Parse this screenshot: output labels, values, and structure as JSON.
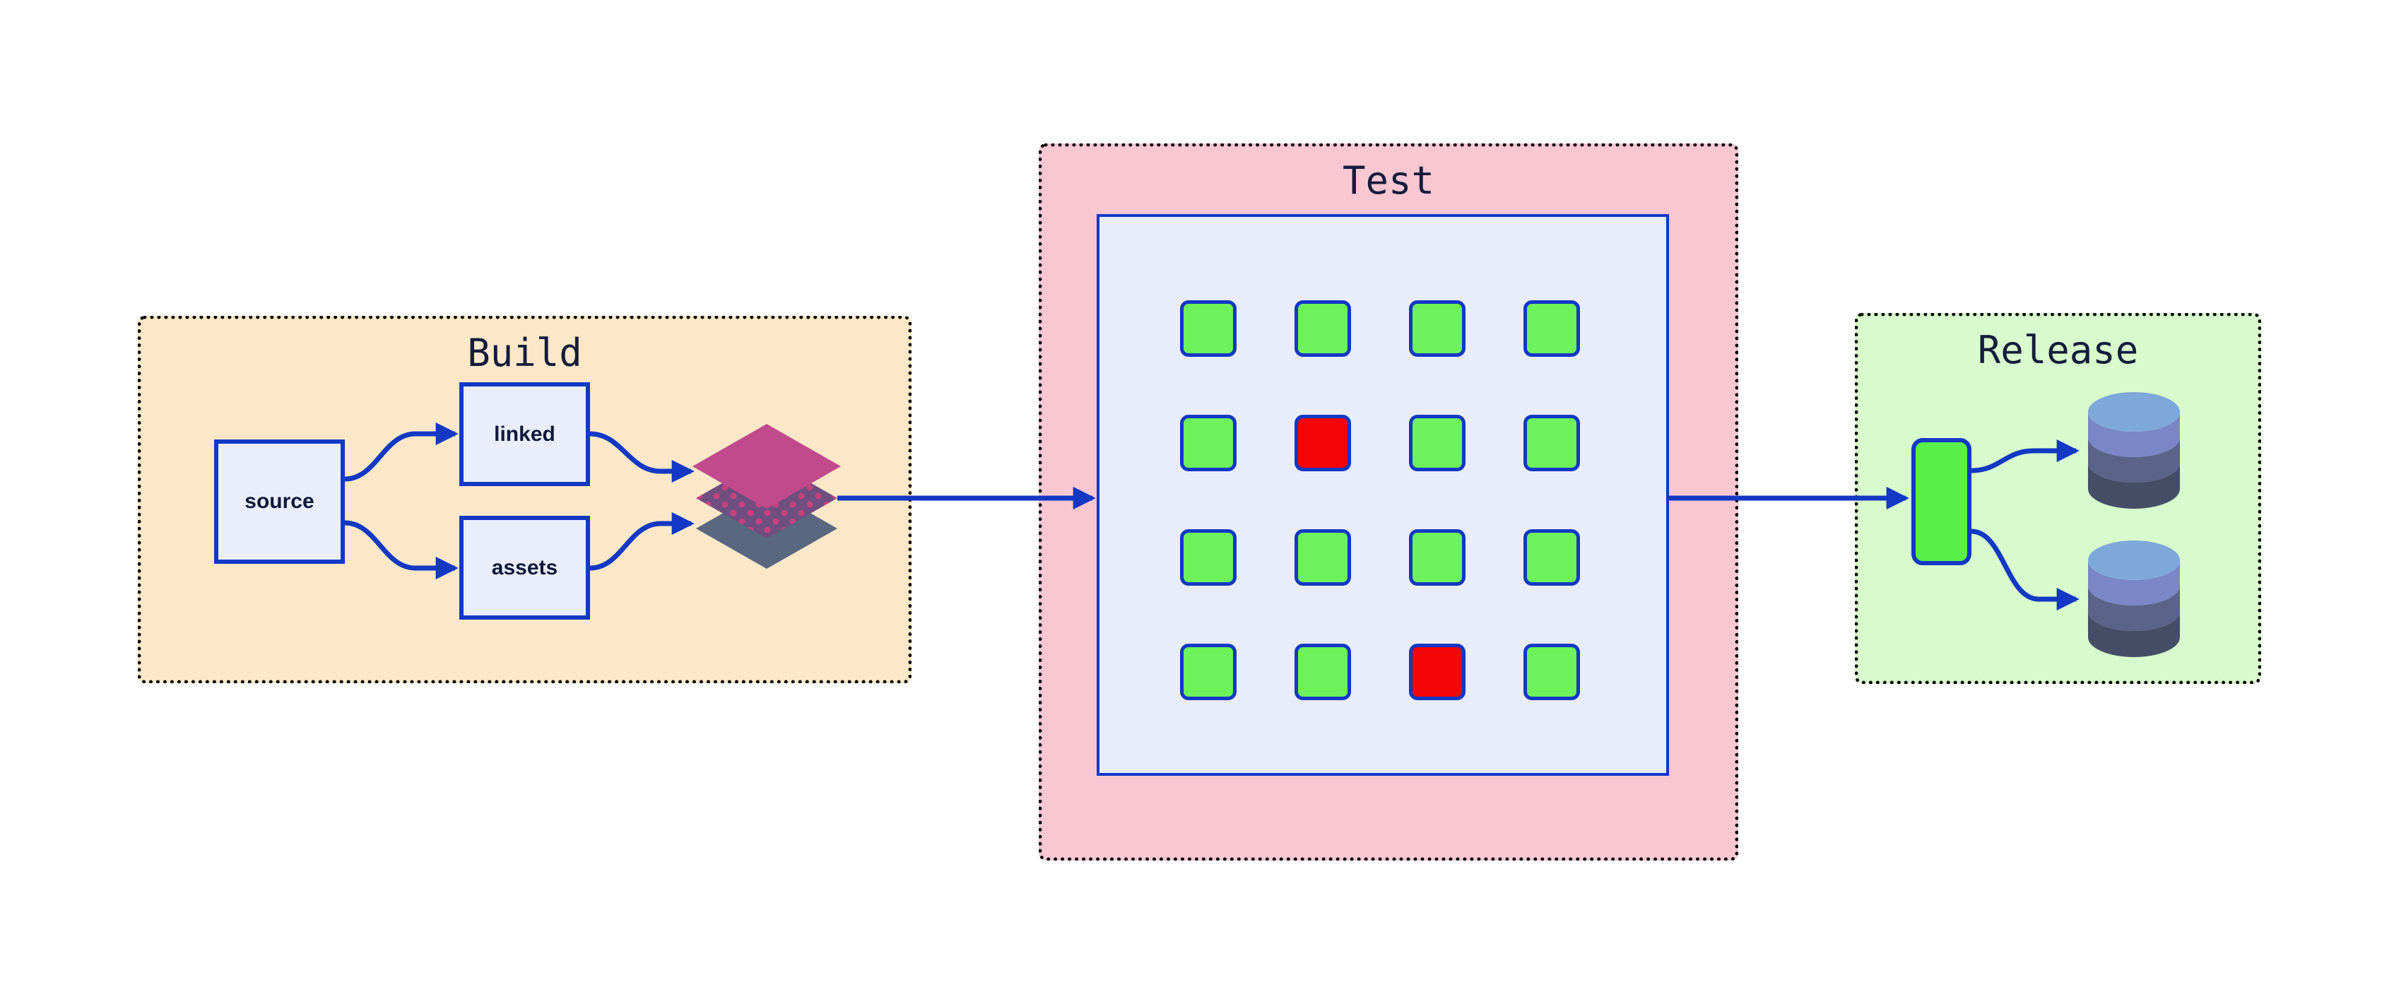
{
  "sections": {
    "build": {
      "title": "Build",
      "background": "#FCE8C8",
      "nodes": [
        {
          "label": "source"
        },
        {
          "label": "linked"
        },
        {
          "label": "assets"
        }
      ],
      "icon": "layers-icon"
    },
    "test": {
      "title": "Test",
      "background": "#F9C7D2",
      "grid": {
        "rows": 4,
        "cols": 4,
        "statuses": [
          [
            "pass",
            "pass",
            "pass",
            "pass"
          ],
          [
            "pass",
            "fail",
            "pass",
            "pass"
          ],
          [
            "pass",
            "pass",
            "pass",
            "pass"
          ],
          [
            "pass",
            "pass",
            "fail",
            "pass"
          ]
        ]
      }
    },
    "release": {
      "title": "Release",
      "background": "#D8FBCD",
      "icons": [
        "artifact-box",
        "database-icon",
        "database-icon"
      ]
    }
  },
  "colors": {
    "connector_blue": "#1238C4",
    "pass_green": "#6DF25C",
    "fail_red": "#F50505",
    "node_fill": "#EAEEFB",
    "panel_fill": "#E9EDF9",
    "title_navy": "#141C3C",
    "artifact_green": "#5AF049",
    "layer_top_magenta": "#C14A8D",
    "layer_middle_purple": "#6F4E80",
    "layer_dot_pink": "#C6427F",
    "layer_bottom_slate": "#596781",
    "db_lid_blue": "#7EA8DA",
    "db_band_periwinkle": "#7A86C6",
    "db_band_slate": "#5A6489",
    "db_band_dark": "#464E67"
  }
}
